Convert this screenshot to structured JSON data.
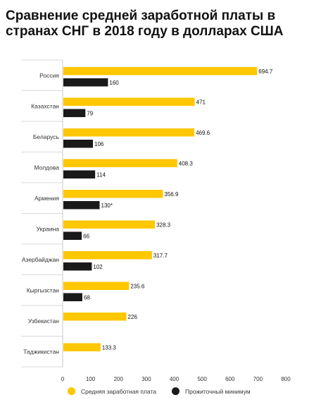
{
  "chart_data": {
    "type": "bar",
    "orientation": "horizontal",
    "title": "Сравнение средней заработной платы в странах СНГ в 2018 году в долларах США",
    "categories": [
      "Россия",
      "Казахстан",
      "Беларусь",
      "Молдова",
      "Армения",
      "Украина",
      "Азербайджан",
      "Кыргызстан",
      "Узбекистан",
      "Таджикистан"
    ],
    "series": [
      {
        "name": "Средняя заработная плата",
        "color": "#ffc700",
        "values": [
          694.7,
          471,
          469.6,
          408.3,
          356.9,
          328.3,
          317.7,
          235.6,
          226,
          133.3
        ],
        "labels": [
          "694.7",
          "471",
          "469.6",
          "408.3",
          "356.9",
          "328.3",
          "317.7",
          "235.6",
          "226",
          "133.3"
        ]
      },
      {
        "name": "Прожиточный минимум",
        "color": "#1a1a1a",
        "values": [
          160,
          79,
          106,
          114,
          130,
          66,
          102,
          68,
          null,
          null
        ],
        "labels": [
          "160",
          "79",
          "106",
          "114",
          "130*",
          "66",
          "102",
          "68",
          null,
          null
        ]
      }
    ],
    "xlim": [
      0,
      800
    ],
    "xticks": [
      0,
      100,
      200,
      300,
      400,
      500,
      600,
      700,
      800
    ],
    "xticklabels": [
      "0",
      "100",
      "200",
      "300",
      "400",
      "500",
      "600",
      "700",
      "800"
    ],
    "grid": false,
    "legend": "bottom"
  }
}
